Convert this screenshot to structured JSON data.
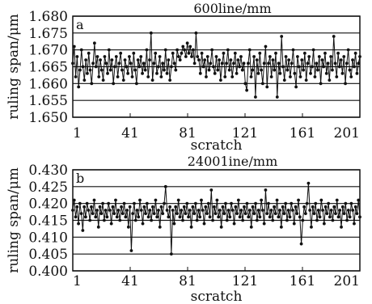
{
  "chart_data": [
    {
      "type": "line",
      "title": "600line/mm",
      "panel_label": "a",
      "xlabel": "scratch",
      "ylabel": "ruling span/μm",
      "xlim": [
        1,
        201
      ],
      "ylim": [
        1.65,
        1.68
      ],
      "x_ticks": [
        "1",
        "41",
        "81",
        "121",
        "161",
        "201"
      ],
      "y_ticks": [
        "1.650",
        "1.655",
        "1.660",
        "1.665",
        "1.670",
        "1.675",
        "1.680"
      ],
      "grid": true,
      "series": [
        {
          "values": [
            1.666,
            1.671,
            1.662,
            1.668,
            1.659,
            1.664,
            1.67,
            1.665,
            1.661,
            1.667,
            1.663,
            1.669,
            1.664,
            1.66,
            1.666,
            1.672,
            1.665,
            1.668,
            1.662,
            1.667,
            1.664,
            1.661,
            1.668,
            1.666,
            1.663,
            1.67,
            1.664,
            1.667,
            1.66,
            1.665,
            1.668,
            1.662,
            1.666,
            1.669,
            1.664,
            1.661,
            1.667,
            1.665,
            1.663,
            1.668,
            1.666,
            1.662,
            1.669,
            1.664,
            1.66,
            1.667,
            1.665,
            1.668,
            1.663,
            1.666,
            1.664,
            1.67,
            1.662,
            1.667,
            1.675,
            1.661,
            1.666,
            1.669,
            1.663,
            1.665,
            1.668,
            1.662,
            1.666,
            1.664,
            1.67,
            1.663,
            1.667,
            1.661,
            1.665,
            1.669,
            1.666,
            1.664,
            1.67,
            1.668,
            1.667,
            1.669,
            1.671,
            1.67,
            1.668,
            1.672,
            1.669,
            1.671,
            1.668,
            1.67,
            1.666,
            1.675,
            1.668,
            1.667,
            1.663,
            1.669,
            1.665,
            1.667,
            1.662,
            1.668,
            1.664,
            1.666,
            1.67,
            1.665,
            1.663,
            1.668,
            1.664,
            1.667,
            1.661,
            1.666,
            1.669,
            1.662,
            1.666,
            1.67,
            1.664,
            1.667,
            1.662,
            1.666,
            1.669,
            1.663,
            1.667,
            1.665,
            1.668,
            1.664,
            1.666,
            1.66,
            1.658,
            1.666,
            1.67,
            1.662,
            1.664,
            1.668,
            1.656,
            1.667,
            1.663,
            1.669,
            1.664,
            1.66,
            1.666,
            1.671,
            1.659,
            1.666,
            1.668,
            1.662,
            1.667,
            1.664,
            1.669,
            1.656,
            1.666,
            1.663,
            1.674,
            1.665,
            1.661,
            1.668,
            1.664,
            1.667,
            1.662,
            1.666,
            1.67,
            1.663,
            1.659,
            1.668,
            1.665,
            1.662,
            1.667,
            1.664,
            1.669,
            1.661,
            1.666,
            1.668,
            1.663,
            1.665,
            1.67,
            1.662,
            1.666,
            1.664,
            1.668,
            1.66,
            1.667,
            1.665,
            1.669,
            1.663,
            1.666,
            1.661,
            1.668,
            1.664,
            1.674,
            1.666,
            1.662,
            1.669,
            1.665,
            1.667,
            1.663,
            1.668,
            1.66,
            1.666,
            1.67,
            1.664,
            1.662,
            1.667,
            1.665,
            1.669,
            1.663,
            1.666,
            1.668
          ]
        }
      ]
    },
    {
      "type": "line",
      "title": "24001ine/mm",
      "panel_label": "b",
      "xlabel": "scratch",
      "ylabel": "ruling span/μm",
      "xlim": [
        1,
        201
      ],
      "ylim": [
        0.4,
        0.43
      ],
      "x_ticks": [
        "1",
        "41",
        "81",
        "121",
        "161",
        "201"
      ],
      "y_ticks": [
        "0.400",
        "0.405",
        "0.410",
        "0.415",
        "0.420",
        "0.425",
        "0.430"
      ],
      "grid": true,
      "series": [
        {
          "values": [
            0.418,
            0.421,
            0.416,
            0.419,
            0.414,
            0.42,
            0.417,
            0.412,
            0.419,
            0.416,
            0.42,
            0.418,
            0.415,
            0.419,
            0.417,
            0.421,
            0.416,
            0.418,
            0.413,
            0.419,
            0.417,
            0.42,
            0.415,
            0.418,
            0.416,
            0.42,
            0.418,
            0.414,
            0.419,
            0.417,
            0.421,
            0.416,
            0.418,
            0.415,
            0.419,
            0.417,
            0.42,
            0.416,
            0.418,
            0.413,
            0.419,
            0.406,
            0.417,
            0.42,
            0.415,
            0.418,
            0.416,
            0.421,
            0.418,
            0.414,
            0.419,
            0.417,
            0.42,
            0.416,
            0.418,
            0.415,
            0.419,
            0.417,
            0.421,
            0.416,
            0.418,
            0.413,
            0.419,
            0.417,
            0.42,
            0.425,
            0.418,
            0.416,
            0.419,
            0.405,
            0.418,
            0.414,
            0.419,
            0.417,
            0.421,
            0.416,
            0.418,
            0.415,
            0.419,
            0.417,
            0.42,
            0.416,
            0.418,
            0.413,
            0.419,
            0.417,
            0.42,
            0.415,
            0.418,
            0.416,
            0.421,
            0.418,
            0.414,
            0.419,
            0.417,
            0.42,
            0.416,
            0.424,
            0.415,
            0.419,
            0.417,
            0.421,
            0.416,
            0.418,
            0.413,
            0.419,
            0.417,
            0.42,
            0.415,
            0.418,
            0.416,
            0.42,
            0.418,
            0.414,
            0.419,
            0.417,
            0.421,
            0.416,
            0.418,
            0.415,
            0.419,
            0.417,
            0.42,
            0.416,
            0.418,
            0.413,
            0.419,
            0.417,
            0.42,
            0.415,
            0.418,
            0.416,
            0.421,
            0.418,
            0.414,
            0.424,
            0.417,
            0.42,
            0.416,
            0.418,
            0.415,
            0.419,
            0.417,
            0.421,
            0.416,
            0.418,
            0.413,
            0.419,
            0.417,
            0.42,
            0.415,
            0.418,
            0.416,
            0.42,
            0.418,
            0.414,
            0.419,
            0.417,
            0.421,
            0.416,
            0.408,
            0.415,
            0.419,
            0.417,
            0.42,
            0.426,
            0.418,
            0.413,
            0.419,
            0.417,
            0.42,
            0.415,
            0.418,
            0.416,
            0.421,
            0.418,
            0.414,
            0.419,
            0.417,
            0.42,
            0.416,
            0.418,
            0.415,
            0.419,
            0.417,
            0.421,
            0.416,
            0.418,
            0.413,
            0.419,
            0.417,
            0.42,
            0.415,
            0.418,
            0.416,
            0.42,
            0.418,
            0.414,
            0.419,
            0.417,
            0.421,
            0.416
          ]
        }
      ]
    }
  ]
}
